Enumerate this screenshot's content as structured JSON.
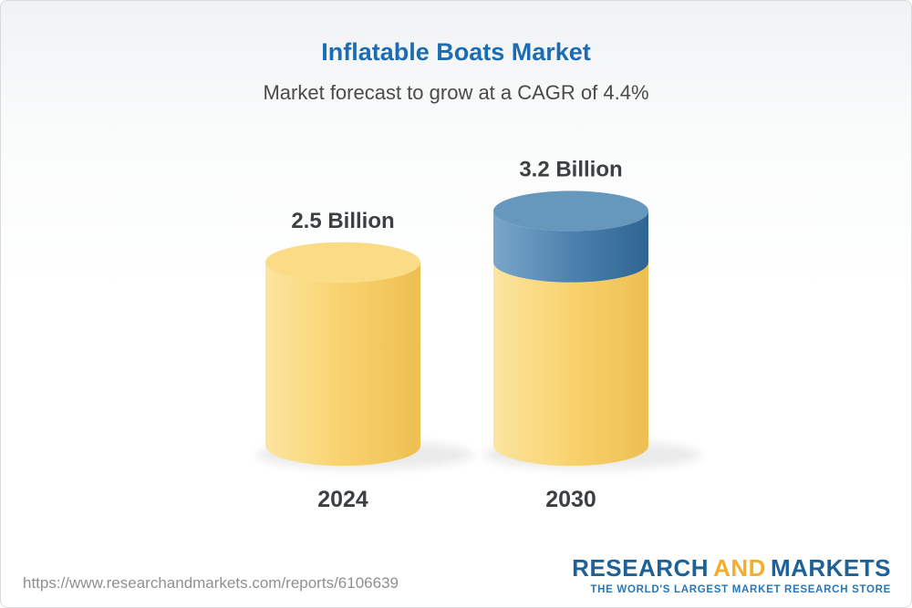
{
  "header": {
    "title": "Inflatable Boats Market",
    "subtitle": "Market forecast to grow at a CAGR of 4.4%"
  },
  "chart_data": {
    "type": "bar",
    "subtype": "3d-cylinder",
    "title": "Inflatable Boats Market",
    "subtitle": "Market forecast to grow at a CAGR of 4.4%",
    "cagr": "4.4%",
    "unit": "Billion",
    "categories": [
      "2024",
      "2030"
    ],
    "values": [
      2.5,
      3.2
    ],
    "value_labels": [
      "2.5 Billion",
      "3.2 Billion"
    ],
    "series": [
      {
        "name": "base-market",
        "color_key": "yellow",
        "values": [
          2.5,
          2.5
        ]
      },
      {
        "name": "forecast-growth",
        "color_key": "blue",
        "values": [
          0,
          0.7
        ]
      }
    ],
    "xlabel": "",
    "ylabel": "",
    "ylim": [
      0,
      3.5
    ],
    "legend": false,
    "gridlines": false
  },
  "footer": {
    "url": "https://www.researchandmarkets.com/reports/6106639",
    "logo": {
      "research": "RESEARCH",
      "and": "AND",
      "markets": "MARKETS",
      "tagline": "THE WORLD'S LARGEST MARKET RESEARCH STORE"
    }
  },
  "colors": {
    "title": "#1b6cb3",
    "subtitle": "#4a4a4a",
    "label": "#3c4043",
    "yellow_light": "#fbe5a0",
    "yellow": "#f9d26e",
    "yellow_dark": "#edbf51",
    "yellow_top": "#fbdc86",
    "blue_light": "#7aa6ca",
    "blue": "#4d82ae",
    "blue_dark": "#2f6593",
    "blue_top": "#6697bd",
    "url": "#8d9093",
    "logo_blue": "#1d6196",
    "logo_gold": "#f2af2e",
    "tagline_blue": "#2878b8"
  }
}
